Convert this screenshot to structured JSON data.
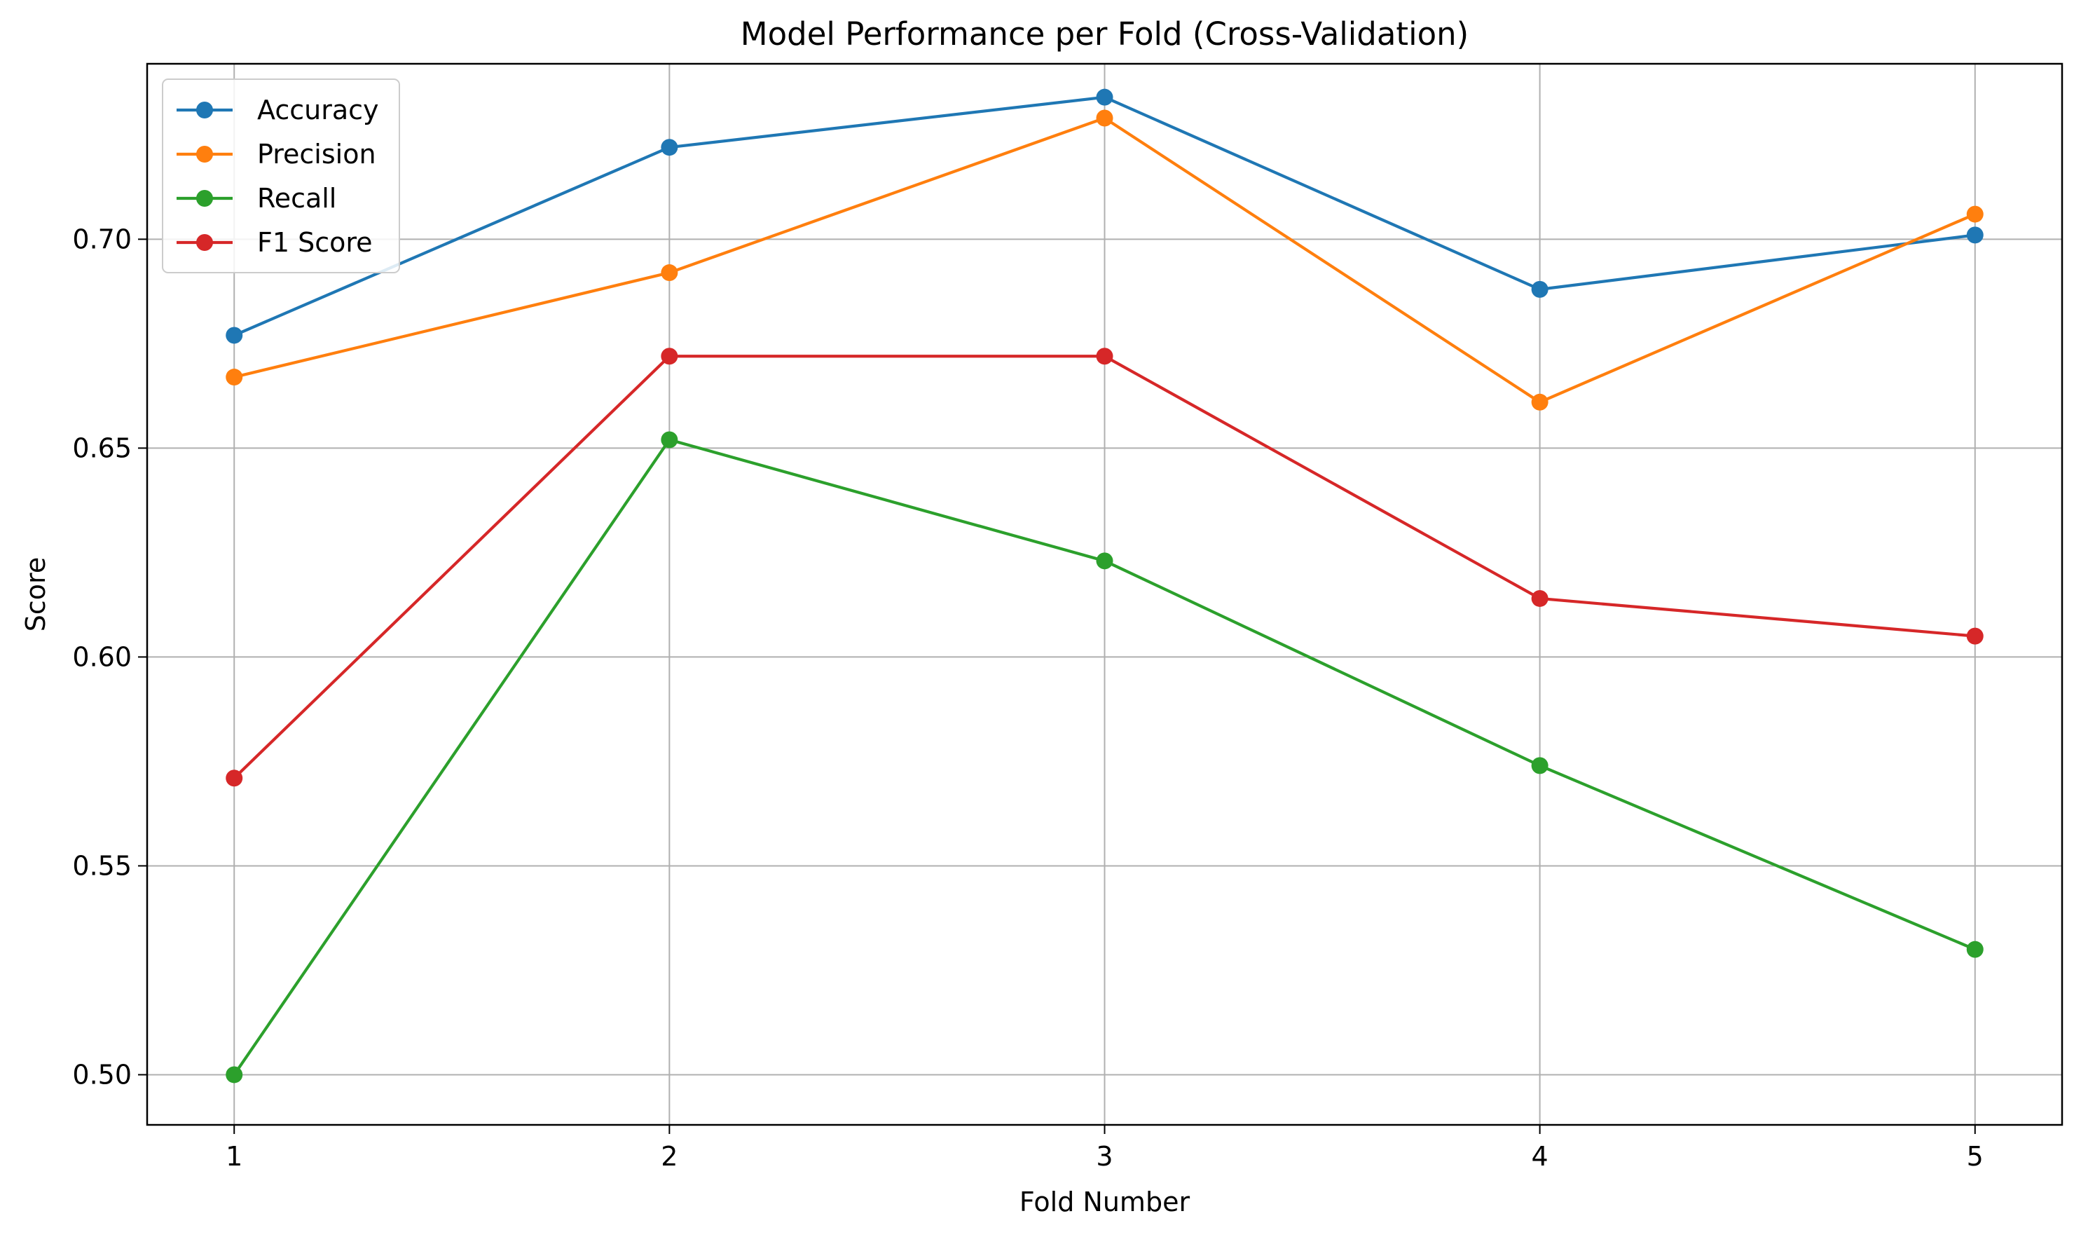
{
  "chart_data": {
    "type": "line",
    "title": "Model Performance per Fold (Cross-Validation)",
    "xlabel": "Fold Number",
    "ylabel": "Score",
    "x": [
      1,
      2,
      3,
      4,
      5
    ],
    "xlim": [
      0.8,
      5.2
    ],
    "ylim": [
      0.488,
      0.742
    ],
    "yticks": [
      0.5,
      0.55,
      0.6,
      0.65,
      0.7
    ],
    "ytick_labels": [
      "0.50",
      "0.55",
      "0.60",
      "0.65",
      "0.70"
    ],
    "xtick_labels": [
      "1",
      "2",
      "3",
      "4",
      "5"
    ],
    "grid": true,
    "legend_position": "top-left",
    "series": [
      {
        "name": "Accuracy",
        "color": "#1f77b4",
        "values": [
          0.677,
          0.722,
          0.734,
          0.688,
          0.701
        ]
      },
      {
        "name": "Precision",
        "color": "#ff7f0e",
        "values": [
          0.667,
          0.692,
          0.729,
          0.661,
          0.706
        ]
      },
      {
        "name": "Recall",
        "color": "#2ca02c",
        "values": [
          0.5,
          0.652,
          0.623,
          0.574,
          0.53
        ]
      },
      {
        "name": "F1 Score",
        "color": "#d62728",
        "values": [
          0.571,
          0.672,
          0.672,
          0.614,
          0.605
        ]
      }
    ]
  }
}
